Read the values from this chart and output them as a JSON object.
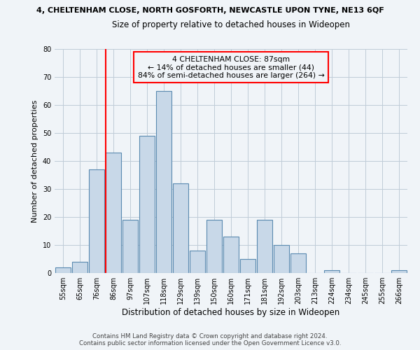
{
  "title_line1": "4, CHELTENHAM CLOSE, NORTH GOSFORTH, NEWCASTLE UPON TYNE, NE13 6QF",
  "title_line2": "Size of property relative to detached houses in Wideopen",
  "xlabel": "Distribution of detached houses by size in Wideopen",
  "ylabel": "Number of detached properties",
  "bar_labels": [
    "55sqm",
    "65sqm",
    "76sqm",
    "86sqm",
    "97sqm",
    "107sqm",
    "118sqm",
    "129sqm",
    "139sqm",
    "150sqm",
    "160sqm",
    "171sqm",
    "181sqm",
    "192sqm",
    "203sqm",
    "213sqm",
    "224sqm",
    "234sqm",
    "245sqm",
    "255sqm",
    "266sqm"
  ],
  "bar_values": [
    2,
    4,
    37,
    43,
    19,
    49,
    65,
    32,
    8,
    19,
    13,
    5,
    19,
    10,
    7,
    0,
    1,
    0,
    0,
    0,
    1
  ],
  "bar_color": "#c8d8e8",
  "bar_edge_color": "#5a8ab0",
  "ylim": [
    0,
    80
  ],
  "yticks": [
    0,
    10,
    20,
    30,
    40,
    50,
    60,
    70,
    80
  ],
  "marker_label": "4 CHELTENHAM CLOSE: 87sqm",
  "marker_smaller": "← 14% of detached houses are smaller (44)",
  "marker_larger": "84% of semi-detached houses are larger (264) →",
  "marker_color": "red",
  "footer_line1": "Contains HM Land Registry data © Crown copyright and database right 2024.",
  "footer_line2": "Contains public sector information licensed under the Open Government Licence v3.0.",
  "bg_color": "#f0f4f8",
  "grid_color": "#c0ccd8"
}
